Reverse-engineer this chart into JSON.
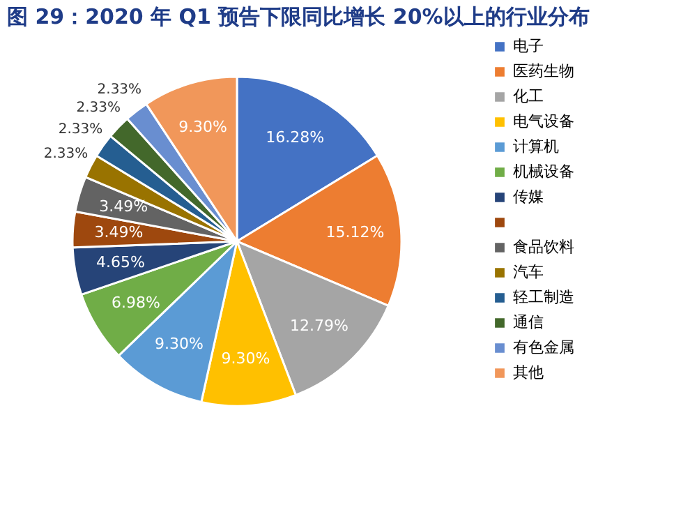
{
  "chart_data": {
    "type": "pie",
    "title": "图 29：2020 年 Q1 预告下限同比增长 20%以上的行业分布",
    "categories": [
      "电子",
      "医药生物",
      "化工",
      "电气设备",
      "计算机",
      "机械设备",
      "传媒",
      null,
      "食品饮料",
      "汽车",
      "轻工制造",
      "通信",
      "有色金属",
      "其他"
    ],
    "values": [
      16.28,
      15.12,
      12.79,
      9.3,
      9.3,
      6.98,
      4.65,
      3.49,
      3.49,
      2.33,
      2.33,
      2.33,
      2.33,
      9.3
    ],
    "value_labels": [
      "16.28%",
      "15.12%",
      "12.79%",
      "9.30%",
      "9.30%",
      "6.98%",
      "4.65%",
      "3.49%",
      "3.49%",
      "2.33%",
      "2.33%",
      "2.33%",
      "2.33%",
      "9.30%"
    ],
    "colors": [
      "#4472c4",
      "#ed7d31",
      "#a5a5a5",
      "#ffc000",
      "#5b9bd5",
      "#70ad47",
      "#264478",
      "#9e480e",
      "#636363",
      "#997300",
      "#255e91",
      "#43682b",
      "#698ed0",
      "#f1975a"
    ],
    "legend": "right"
  }
}
